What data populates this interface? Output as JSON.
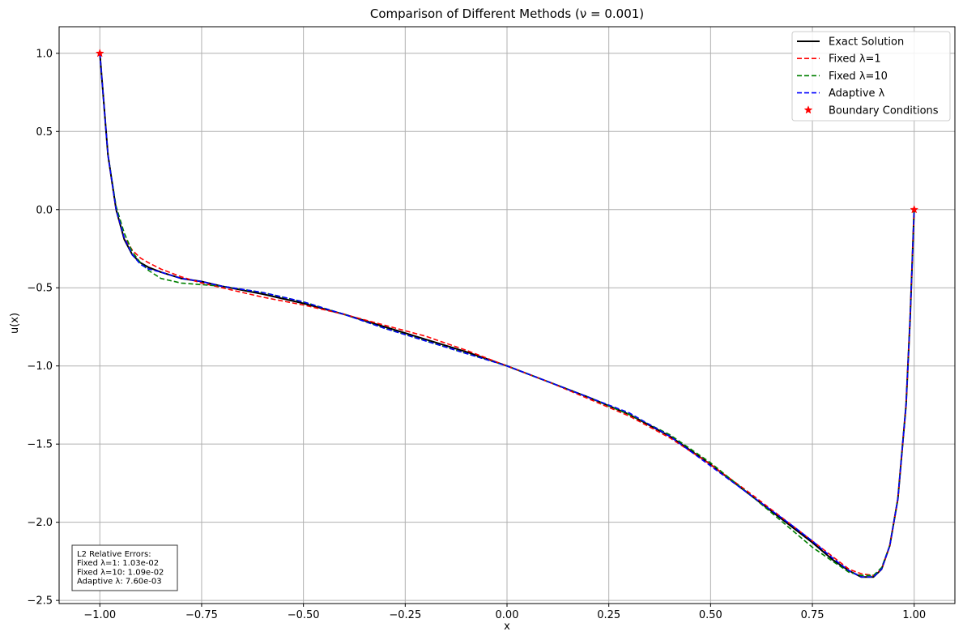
{
  "chart_data": {
    "type": "line",
    "title": "Comparison of Different Methods (ν = 0.001)",
    "xlabel": "x",
    "ylabel": "u(x)",
    "xlim": [
      -1.1,
      1.1
    ],
    "ylim": [
      -2.52,
      1.17
    ],
    "x_ticks": [
      -1.0,
      -0.75,
      -0.5,
      -0.25,
      0.0,
      0.25,
      0.5,
      0.75,
      1.0
    ],
    "x_tick_labels": [
      "−1.00",
      "−0.75",
      "−0.50",
      "−0.25",
      "0.00",
      "0.25",
      "0.50",
      "0.75",
      "1.00"
    ],
    "y_ticks": [
      1.0,
      0.5,
      0.0,
      -0.5,
      -1.0,
      -1.5,
      -2.0,
      -2.5
    ],
    "y_tick_labels": [
      "1.0",
      "0.5",
      "0.0",
      "−0.5",
      "−1.0",
      "−1.5",
      "−2.0",
      "−2.5"
    ],
    "grid": true,
    "legend_position": "top-right",
    "series": [
      {
        "name": "Exact Solution",
        "color": "#000000",
        "style": "solid",
        "x": [
          -1.0,
          -0.98,
          -0.96,
          -0.94,
          -0.92,
          -0.9,
          -0.88,
          -0.85,
          -0.8,
          -0.75,
          -0.7,
          -0.6,
          -0.5,
          -0.4,
          -0.3,
          -0.2,
          -0.1,
          0.0,
          0.1,
          0.2,
          0.3,
          0.4,
          0.5,
          0.6,
          0.7,
          0.75,
          0.8,
          0.84,
          0.87,
          0.9,
          0.92,
          0.94,
          0.96,
          0.98,
          0.99,
          1.0
        ],
        "y": [
          1.0,
          0.35,
          0.0,
          -0.19,
          -0.29,
          -0.34,
          -0.37,
          -0.4,
          -0.44,
          -0.46,
          -0.49,
          -0.54,
          -0.6,
          -0.67,
          -0.75,
          -0.83,
          -0.91,
          -1.0,
          -1.1,
          -1.2,
          -1.31,
          -1.45,
          -1.63,
          -1.83,
          -2.03,
          -2.13,
          -2.24,
          -2.31,
          -2.35,
          -2.35,
          -2.3,
          -2.15,
          -1.85,
          -1.25,
          -0.7,
          0.0
        ]
      },
      {
        "name": "Fixed λ=1",
        "color": "#ff0000",
        "style": "dashed",
        "x": [
          -1.0,
          -0.98,
          -0.96,
          -0.94,
          -0.92,
          -0.9,
          -0.88,
          -0.85,
          -0.8,
          -0.75,
          -0.7,
          -0.6,
          -0.5,
          -0.4,
          -0.3,
          -0.2,
          -0.1,
          0.0,
          0.1,
          0.2,
          0.3,
          0.4,
          0.5,
          0.6,
          0.7,
          0.75,
          0.8,
          0.84,
          0.87,
          0.9,
          0.92,
          0.94,
          0.96,
          0.98,
          0.99,
          1.0
        ],
        "y": [
          1.0,
          0.35,
          0.0,
          -0.18,
          -0.26,
          -0.31,
          -0.34,
          -0.38,
          -0.43,
          -0.47,
          -0.5,
          -0.56,
          -0.61,
          -0.67,
          -0.74,
          -0.81,
          -0.9,
          -1.0,
          -1.1,
          -1.21,
          -1.32,
          -1.46,
          -1.63,
          -1.82,
          -2.02,
          -2.12,
          -2.22,
          -2.3,
          -2.33,
          -2.34,
          -2.3,
          -2.15,
          -1.85,
          -1.25,
          -0.7,
          0.0
        ]
      },
      {
        "name": "Fixed λ=10",
        "color": "#008000",
        "style": "dashed",
        "x": [
          -1.0,
          -0.98,
          -0.96,
          -0.94,
          -0.92,
          -0.9,
          -0.88,
          -0.85,
          -0.8,
          -0.75,
          -0.7,
          -0.6,
          -0.5,
          -0.4,
          -0.3,
          -0.2,
          -0.1,
          0.0,
          0.1,
          0.2,
          0.3,
          0.4,
          0.5,
          0.6,
          0.7,
          0.75,
          0.8,
          0.84,
          0.87,
          0.9,
          0.92,
          0.94,
          0.96,
          0.98,
          0.99,
          1.0
        ],
        "y": [
          1.0,
          0.35,
          0.02,
          -0.15,
          -0.27,
          -0.34,
          -0.39,
          -0.44,
          -0.47,
          -0.48,
          -0.49,
          -0.53,
          -0.59,
          -0.67,
          -0.76,
          -0.84,
          -0.92,
          -1.0,
          -1.1,
          -1.2,
          -1.31,
          -1.44,
          -1.62,
          -1.83,
          -2.05,
          -2.16,
          -2.25,
          -2.32,
          -2.34,
          -2.34,
          -2.29,
          -2.15,
          -1.85,
          -1.25,
          -0.7,
          0.0
        ]
      },
      {
        "name": "Adaptive λ",
        "color": "#0000ff",
        "style": "dashed",
        "x": [
          -1.0,
          -0.98,
          -0.96,
          -0.94,
          -0.92,
          -0.9,
          -0.88,
          -0.85,
          -0.8,
          -0.75,
          -0.7,
          -0.6,
          -0.5,
          -0.4,
          -0.3,
          -0.2,
          -0.1,
          0.0,
          0.1,
          0.2,
          0.3,
          0.4,
          0.5,
          0.6,
          0.7,
          0.75,
          0.8,
          0.84,
          0.87,
          0.9,
          0.92,
          0.94,
          0.96,
          0.98,
          0.99,
          1.0
        ],
        "y": [
          1.0,
          0.35,
          0.0,
          -0.18,
          -0.29,
          -0.35,
          -0.38,
          -0.4,
          -0.44,
          -0.46,
          -0.49,
          -0.53,
          -0.59,
          -0.67,
          -0.76,
          -0.84,
          -0.92,
          -1.0,
          -1.1,
          -1.2,
          -1.3,
          -1.45,
          -1.64,
          -1.83,
          -2.02,
          -2.12,
          -2.23,
          -2.31,
          -2.35,
          -2.35,
          -2.3,
          -2.15,
          -1.85,
          -1.25,
          -0.7,
          0.0
        ]
      }
    ],
    "markers": {
      "name": "Boundary Conditions",
      "color": "#ff0000",
      "symbol": "star",
      "x": [
        -1.0,
        1.0
      ],
      "y": [
        1.0,
        0.0
      ]
    },
    "annotation_lines": [
      "L2 Relative Errors:",
      "Fixed λ=1: 1.03e-02",
      "Fixed λ=10: 1.09e-02",
      "Adaptive λ: 7.60e-03"
    ]
  }
}
